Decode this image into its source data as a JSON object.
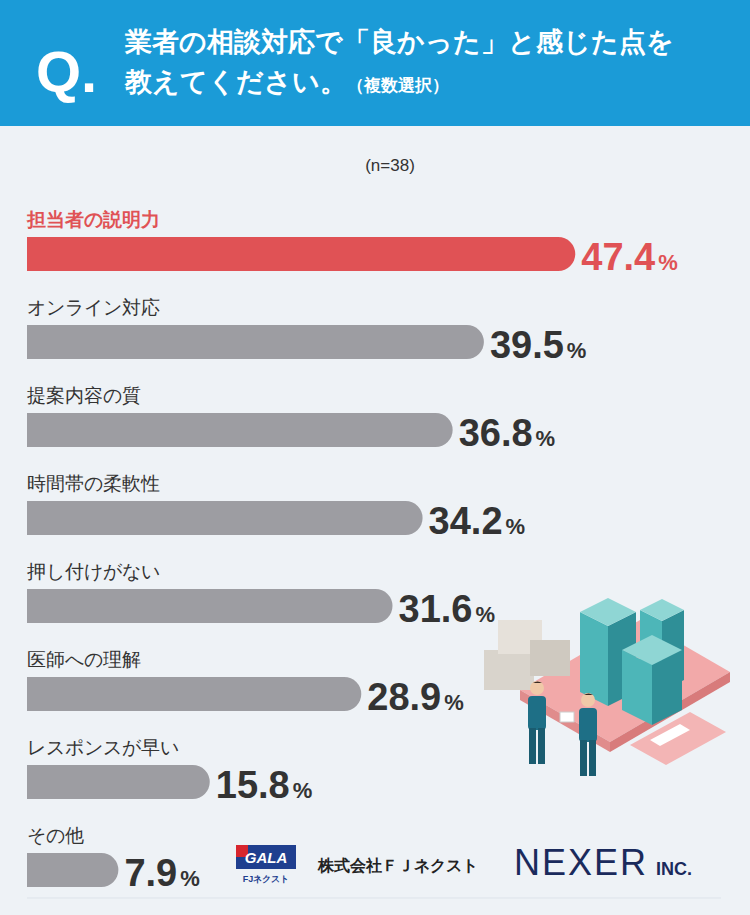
{
  "chart_data": {
    "type": "bar",
    "orientation": "horizontal",
    "title": "業者の相談対応で「良かった」と感じた点を教えてください。",
    "subtitle": "（複数選択）",
    "annotations": [
      "Q.",
      "(n=38)",
      "GALA",
      "FJネクスト",
      "株式会社ＦＪネクスト",
      "NEXER",
      "INC."
    ],
    "categories": [
      "担当者の説明力",
      "オンライン対応",
      "提案内容の質",
      "時間帯の柔軟性",
      "押し付けがない",
      "医師への理解",
      "レスポンスが早い",
      "その他"
    ],
    "values": [
      47.4,
      39.5,
      36.8,
      34.2,
      31.6,
      28.9,
      15.8,
      7.9
    ],
    "value_labels": [
      "47.4%",
      "39.5%",
      "36.8%",
      "34.2%",
      "31.6%",
      "28.9%",
      "15.8%",
      "7.9%"
    ],
    "colors": [
      "#e05255",
      "#9d9da2",
      "#9d9da2",
      "#9d9da2",
      "#9d9da2",
      "#9d9da2",
      "#9d9da2",
      "#9d9da2"
    ],
    "xlim": [
      0,
      60
    ],
    "xticks": [],
    "tick_labels": false,
    "data_labels": true,
    "grid": false
  }
}
